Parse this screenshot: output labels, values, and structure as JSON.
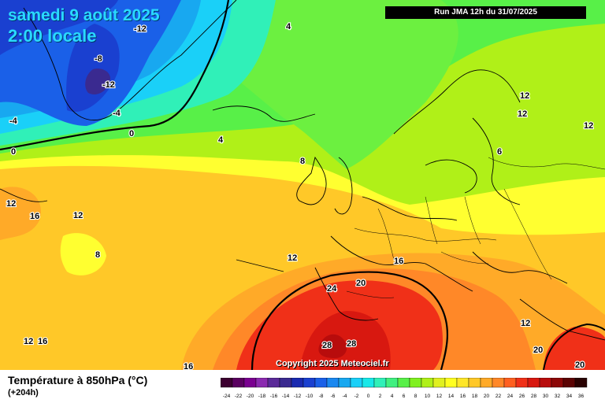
{
  "header": {
    "date": "samedi 9 août 2025",
    "time": "2:00 locale",
    "run": "Run JMA 12h du 31/07/2025"
  },
  "footer": {
    "parameter": "Température à 850hPa (°C)",
    "lead": "(+204h)",
    "copyright": "Copyright 2025 Meteociel.fr"
  },
  "legend": {
    "ticks": [
      "-24",
      "-22",
      "-20",
      "-18",
      "-16",
      "-14",
      "-12",
      "-10",
      "-8",
      "-6",
      "-4",
      "-2",
      "0",
      "2",
      "4",
      "6",
      "8",
      "10",
      "12",
      "14",
      "16",
      "18",
      "20",
      "22",
      "24",
      "26",
      "28",
      "30",
      "32",
      "34",
      "36"
    ],
    "colors": [
      "#3c0030",
      "#5a0060",
      "#7a0090",
      "#8b2ab0",
      "#5b2a98",
      "#3a2a90",
      "#1a2ab0",
      "#1a40d0",
      "#1a60e8",
      "#1a88f0",
      "#18a8f0",
      "#1ad0f8",
      "#18e8e8",
      "#30f0b8",
      "#40f080",
      "#58f048",
      "#80f020",
      "#b0f018",
      "#e0f020",
      "#ffff20",
      "#ffe628",
      "#ffc828",
      "#ffaa28",
      "#ff8828",
      "#ff6020",
      "#f03018",
      "#d81810",
      "#b80c0c",
      "#8c0808",
      "#5c0404",
      "#2a0202"
    ]
  },
  "map": {
    "contour_labels": [
      "-12",
      "-8",
      "-12",
      "-4",
      "-4",
      "0",
      "0",
      "4",
      "4",
      "8",
      "8",
      "12",
      "12",
      "12",
      "16",
      "12",
      "16",
      "16",
      "20",
      "24",
      "28",
      "28",
      "20",
      "20",
      "6",
      "12",
      "12",
      "12",
      "12",
      "16"
    ]
  }
}
